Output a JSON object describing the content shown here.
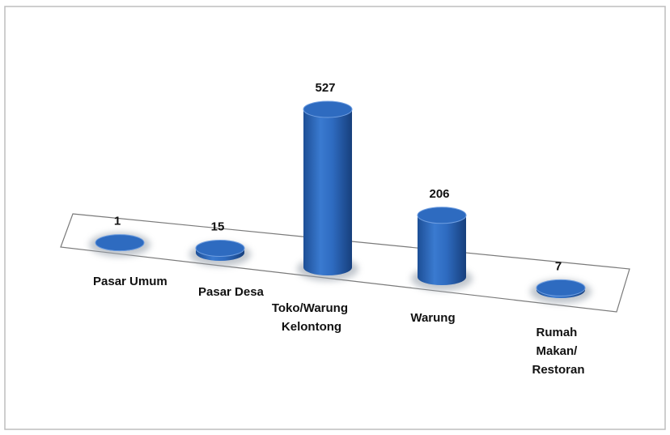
{
  "chart_data": {
    "type": "bar3d",
    "categories": [
      "Pasar Umum",
      "Pasar Desa",
      "Toko/Warung Kelontong",
      "Warung",
      "Rumah Makan/ Restoran"
    ],
    "values": [
      1,
      15,
      527,
      206,
      7
    ],
    "color": "#2e6bc0"
  }
}
